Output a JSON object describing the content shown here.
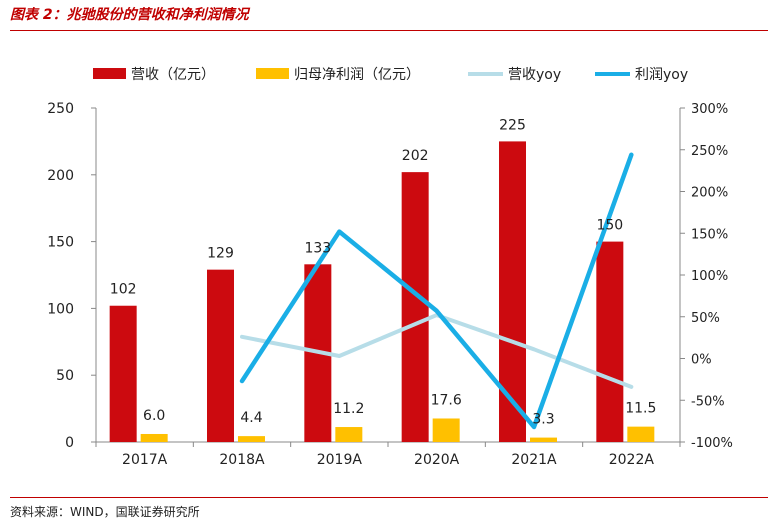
{
  "figure": {
    "title": "图表 2：兆驰股份的营收和净利润情况",
    "source": "资料来源：WIND，国联证券研究所"
  },
  "colors": {
    "revenue": "#cc0a0f",
    "profit": "#ffc000",
    "revenue_yoy": "#b7dde8",
    "profit_yoy": "#1aaee6",
    "accent": "#c00000"
  },
  "chart_data": {
    "type": "bar",
    "title": "",
    "categories": [
      "2017A",
      "2018A",
      "2019A",
      "2020A",
      "2021A",
      "2022A"
    ],
    "series": [
      {
        "name": "营收（亿元）",
        "type": "bar",
        "axis": "left",
        "values": [
          102,
          129,
          133,
          202,
          225,
          150
        ],
        "labels": [
          "102",
          "129",
          "133",
          "202",
          "225",
          "150"
        ]
      },
      {
        "name": "归母净利润（亿元）",
        "type": "bar",
        "axis": "left",
        "values": [
          6.0,
          4.4,
          11.2,
          17.6,
          3.3,
          11.5
        ],
        "labels": [
          "6.0",
          "4.4",
          "11.2",
          "17.6",
          "3.3",
          "11.5"
        ]
      },
      {
        "name": "营收yoy",
        "type": "line",
        "axis": "right",
        "values": [
          null,
          26,
          3,
          52,
          11,
          -34
        ]
      },
      {
        "name": "利润yoy",
        "type": "line",
        "axis": "right",
        "values": [
          null,
          -27,
          152,
          57,
          -82,
          244
        ]
      }
    ],
    "y_left": {
      "min": 0,
      "max": 250,
      "ticks": [
        "0",
        "50",
        "100",
        "150",
        "200",
        "250"
      ],
      "tick_values": [
        0,
        50,
        100,
        150,
        200,
        250
      ]
    },
    "y_right": {
      "min": -100,
      "max": 300,
      "ticks": [
        "-100%",
        "-50%",
        "0%",
        "50%",
        "100%",
        "150%",
        "200%",
        "250%",
        "300%"
      ],
      "tick_values": [
        -100,
        -50,
        0,
        50,
        100,
        150,
        200,
        250,
        300
      ]
    },
    "grid": false,
    "legend": "top"
  }
}
